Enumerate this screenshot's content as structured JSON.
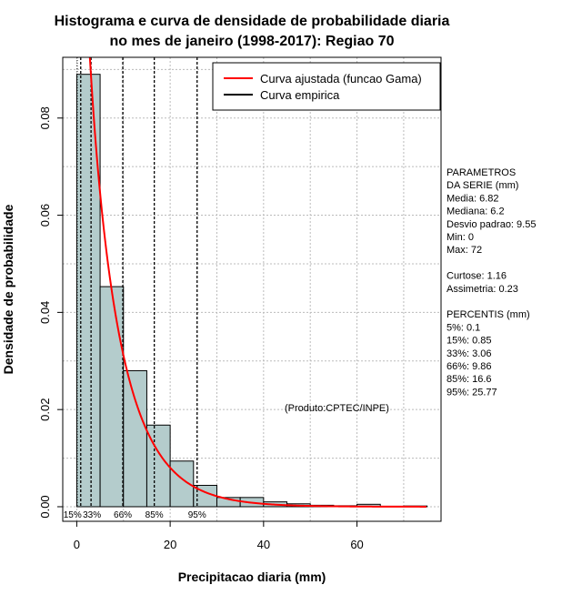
{
  "chart_data": {
    "type": "bar",
    "title": [
      "Histograma e curva de densidade de probabilidade diaria",
      "no mes de janeiro (1998-2017): Regiao 70"
    ],
    "xlabel": "Precipitacao diaria (mm)",
    "ylabel": "Densidade de probabilidade",
    "xlim": [
      -3,
      78
    ],
    "ylim": [
      -0.003,
      0.0925
    ],
    "x_ticks": [
      0,
      20,
      40,
      60
    ],
    "y_ticks": [
      0.0,
      0.02,
      0.04,
      0.06,
      0.08
    ],
    "x_tick_labels": [
      "0",
      "20",
      "40",
      "60"
    ],
    "y_tick_labels": [
      "0.00",
      "0.02",
      "0.04",
      "0.06",
      "0.08"
    ],
    "bins": [
      {
        "start": 0,
        "end": 5,
        "density": 0.089
      },
      {
        "start": 5,
        "end": 10,
        "density": 0.0453
      },
      {
        "start": 10,
        "end": 15,
        "density": 0.028
      },
      {
        "start": 15,
        "end": 20,
        "density": 0.0168
      },
      {
        "start": 20,
        "end": 25,
        "density": 0.0094
      },
      {
        "start": 25,
        "end": 30,
        "density": 0.0044
      },
      {
        "start": 30,
        "end": 35,
        "density": 0.0019
      },
      {
        "start": 35,
        "end": 40,
        "density": 0.0019
      },
      {
        "start": 40,
        "end": 45,
        "density": 0.001
      },
      {
        "start": 45,
        "end": 50,
        "density": 0.0006
      },
      {
        "start": 50,
        "end": 55,
        "density": 0.0003
      },
      {
        "start": 55,
        "end": 60,
        "density": 0.0002
      },
      {
        "start": 60,
        "end": 65,
        "density": 0.0005
      },
      {
        "start": 65,
        "end": 70,
        "density": 0.0001
      },
      {
        "start": 70,
        "end": 75,
        "density": 0.00015
      }
    ],
    "gamma_fit": {
      "shape": 0.85,
      "scale": 8.0
    },
    "curve_points_x": [
      1,
      2,
      3,
      4,
      5,
      6,
      8,
      10,
      12,
      14,
      16,
      18,
      20,
      22,
      25,
      28,
      31,
      35,
      40,
      45,
      50,
      55,
      60,
      65,
      70,
      75
    ],
    "percentiles": [
      {
        "label": "15%",
        "value": 0.85
      },
      {
        "label": "33%",
        "value": 3.06
      },
      {
        "label": "66%",
        "value": 9.86
      },
      {
        "label": "85%",
        "value": 16.6
      },
      {
        "label": "95%",
        "value": 25.77
      }
    ],
    "legend": {
      "position": "top-right",
      "entries": [
        {
          "label": "Curva ajustada (funcao Gama)",
          "color": "#ff0000"
        },
        {
          "label": "Curva empirica",
          "color": "#000000"
        }
      ]
    },
    "annotation": "(Produto:CPTEC/INPE)",
    "grid": true
  },
  "stats_panel": {
    "lines": [
      "PARAMETROS",
      "DA SERIE (mm)",
      "  Media: 6.82",
      "  Mediana: 6.2",
      "  Desvio padrao: 9.55",
      "  Min: 0",
      "  Max: 72",
      "",
      "Curtose: 1.16",
      "Assimetria: 0.23",
      "",
      "PERCENTIS (mm)",
      "  5%: 0.1",
      "  15%: 0.85",
      "  33%: 3.06",
      "  66%: 9.86",
      "  85%: 16.6",
      "  95%: 25.77"
    ]
  },
  "colors": {
    "bar_fill": "#b4cccc",
    "bar_stroke": "#000000",
    "grid": "#bbbbbb",
    "curve": "#ff0000"
  }
}
